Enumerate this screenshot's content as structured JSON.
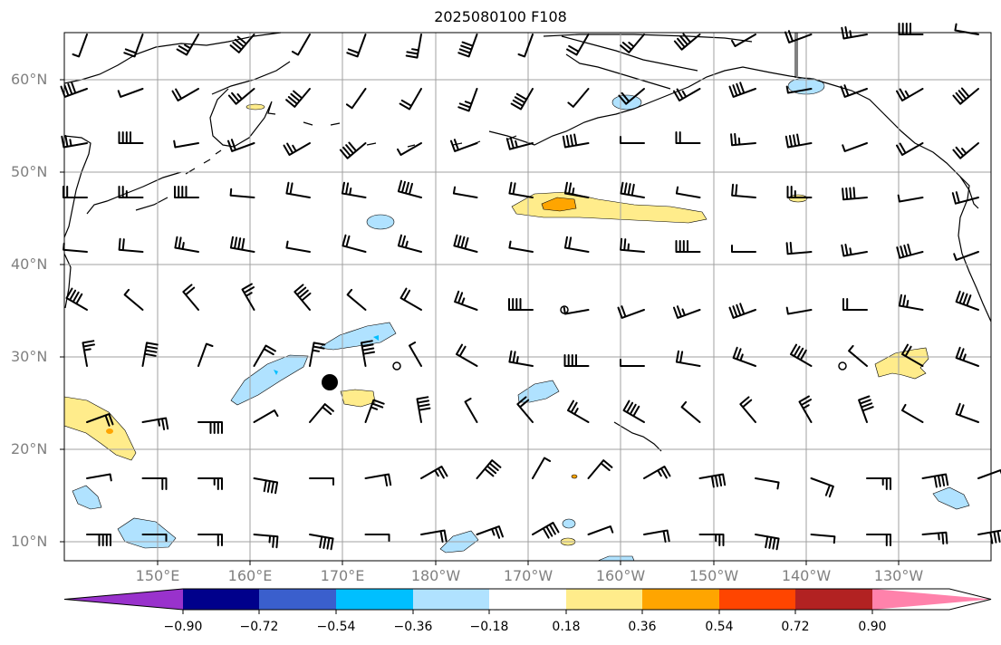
{
  "title": "2025080100 F108",
  "lat_labels": [
    "60°N",
    "50°N",
    "40°N",
    "30°N",
    "20°N",
    "10°N"
  ],
  "lon_labels": [
    "150°E",
    "160°E",
    "170°E",
    "180°W",
    "170°W",
    "160°W",
    "150°W",
    "140°W",
    "130°W"
  ],
  "colorbar": {
    "ticks": [
      "−0.90",
      "−0.72",
      "−0.54",
      "−0.36",
      "−0.18",
      "0.18",
      "0.36",
      "0.54",
      "0.72",
      "0.90"
    ],
    "colors": [
      "#9932cc",
      "#00008b",
      "#3a5fcd",
      "#00bfff",
      "#b0e2ff",
      "#ffffff",
      "#ffec8b",
      "#ffa500",
      "#ff4500",
      "#b22222",
      "#ff82ab"
    ]
  },
  "colors": {
    "frame": "#000000",
    "grid": "#a0a0a0",
    "coast": "#000000",
    "barb": "#000000",
    "label": "#808080",
    "pos_light": "#ffec8b",
    "pos_mid": "#ffa500",
    "pos_strong": "#ff4500",
    "neg_light": "#b0e2ff",
    "neg_mid": "#00bfff"
  }
}
